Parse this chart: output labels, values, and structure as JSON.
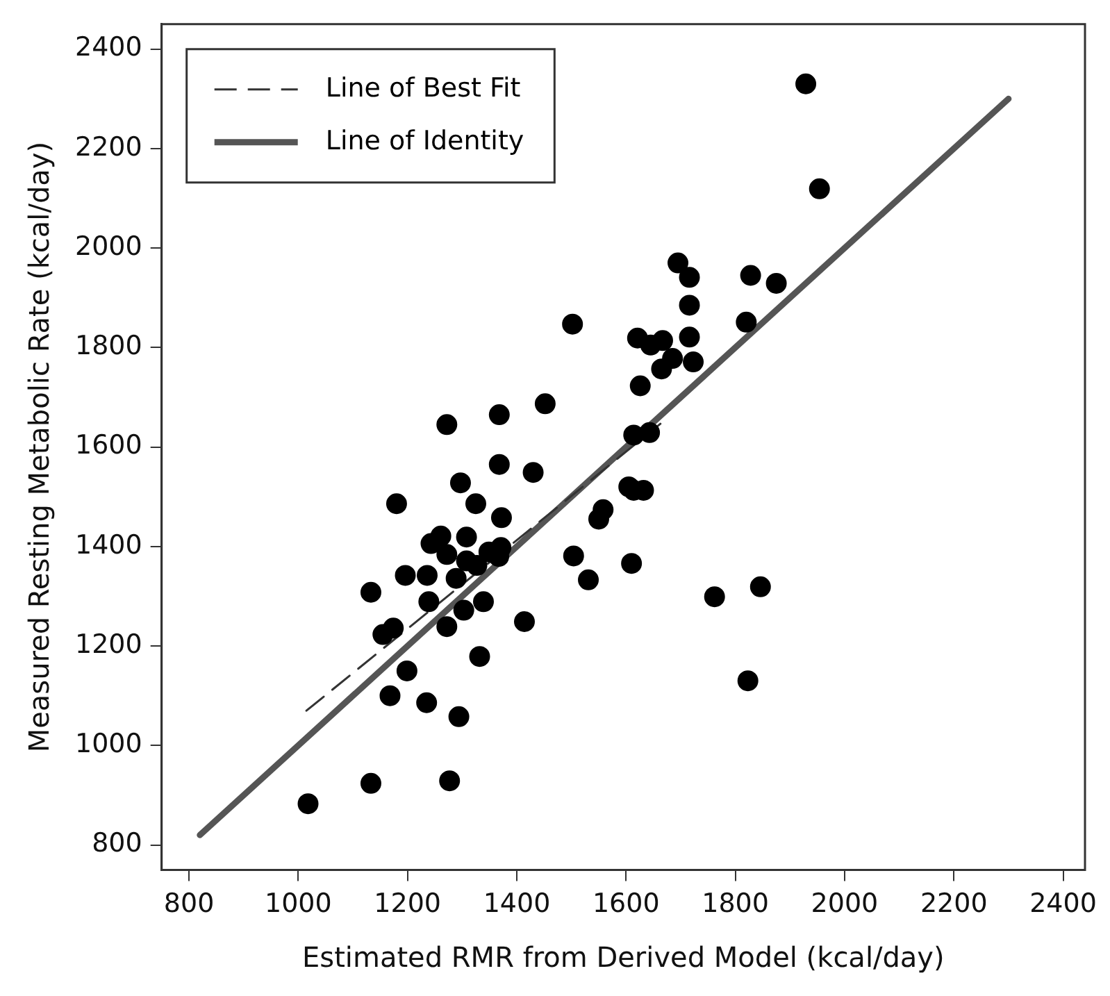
{
  "chart_data": {
    "type": "scatter",
    "xlabel": "Estimated RMR from Derived Model (kcal/day)",
    "ylabel": "Measured Resting Metabolic Rate (kcal/day)",
    "xlim": [
      750,
      2440
    ],
    "ylim": [
      750,
      2450
    ],
    "xticks": [
      800,
      1000,
      1200,
      1400,
      1600,
      1800,
      2000,
      2200,
      2400
    ],
    "yticks": [
      800,
      1000,
      1200,
      1400,
      1600,
      1800,
      2000,
      2200,
      2400
    ],
    "grid": false,
    "legend": "top left",
    "marker": "circle",
    "series": [
      {
        "color": "#000000",
        "x": [
          1018,
          1133,
          1277,
          1168,
          1235,
          1294,
          1199,
          1332,
          1414,
          1155,
          1174,
          1272,
          1303,
          1339,
          1239,
          1133,
          1196,
          1236,
          1289,
          1308,
          1327,
          1367,
          1349,
          1371,
          1243,
          1261,
          1272,
          1308,
          1372,
          1325,
          1180,
          1297,
          1368,
          1430,
          1272,
          1368,
          1452,
          1504,
          1531,
          1610,
          1550,
          1558,
          1605,
          1614,
          1632,
          1614,
          1626,
          1929,
          1954,
          1695,
          1716,
          1828,
          1875,
          1502,
          1716,
          1820,
          1621,
          1645,
          1667,
          1716,
          1685,
          1665,
          1723,
          1643,
          1762,
          1846,
          1823
        ],
        "values": [
          883,
          924,
          929,
          1100,
          1086,
          1058,
          1150,
          1179,
          1249,
          1223,
          1236,
          1239,
          1272,
          1289,
          1289,
          1308,
          1342,
          1342,
          1336,
          1371,
          1362,
          1380,
          1389,
          1398,
          1406,
          1421,
          1384,
          1419,
          1458,
          1486,
          1486,
          1528,
          1565,
          1549,
          1645,
          1665,
          1687,
          1381,
          1333,
          1366,
          1455,
          1474,
          1520,
          1513,
          1513,
          1624,
          1723,
          2330,
          2119,
          1970,
          1941,
          1945,
          1929,
          1847,
          1885,
          1851,
          1819,
          1805,
          1814,
          1821,
          1778,
          1757,
          1771,
          1629,
          1299,
          1319,
          1130
        ]
      },
      {
        "type": "line",
        "name": "Line of Best Fit",
        "color": "#333333",
        "line_style": "dashed",
        "marker": "none",
        "x": [
          1015,
          1670
        ],
        "values": [
          1070,
          1653
        ]
      },
      {
        "type": "line",
        "name": "Line of Identity",
        "color": "#555555",
        "line_style": "solid",
        "marker": "none",
        "x": [
          820,
          2300
        ],
        "values": [
          820,
          2300
        ]
      }
    ]
  }
}
